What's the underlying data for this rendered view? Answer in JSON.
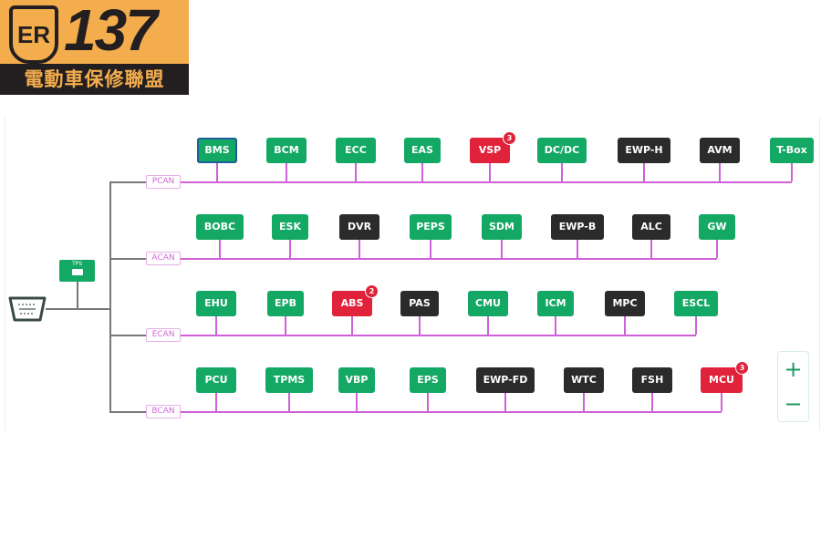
{
  "logo": {
    "badge": "ER",
    "number": "137",
    "tagline": "電動車保修聯盟"
  },
  "colors": {
    "ok": "#14a865",
    "inactive": "#2b2b2b",
    "fault": "#e0223a",
    "selected_border": "#1d5f9a",
    "bus": "#d060d8",
    "trunk": "#777777"
  },
  "gateway": {
    "label": "TPS"
  },
  "buses": [
    {
      "name": "PCAN",
      "nodes": [
        {
          "label": "BMS",
          "status": "ok",
          "selected": true
        },
        {
          "label": "BCM",
          "status": "ok"
        },
        {
          "label": "ECC",
          "status": "ok"
        },
        {
          "label": "EAS",
          "status": "ok"
        },
        {
          "label": "VSP",
          "status": "fault",
          "faults": "3"
        },
        {
          "label": "DC/DC",
          "status": "ok"
        },
        {
          "label": "EWP-H",
          "status": "inactive"
        },
        {
          "label": "AVM",
          "status": "inactive"
        },
        {
          "label": "T-Box",
          "status": "ok"
        }
      ]
    },
    {
      "name": "ACAN",
      "nodes": [
        {
          "label": "BOBC",
          "status": "ok"
        },
        {
          "label": "ESK",
          "status": "ok"
        },
        {
          "label": "DVR",
          "status": "inactive"
        },
        {
          "label": "PEPS",
          "status": "ok"
        },
        {
          "label": "SDM",
          "status": "ok"
        },
        {
          "label": "EWP-B",
          "status": "inactive"
        },
        {
          "label": "ALC",
          "status": "inactive"
        },
        {
          "label": "GW",
          "status": "ok"
        }
      ]
    },
    {
      "name": "ECAN",
      "nodes": [
        {
          "label": "EHU",
          "status": "ok"
        },
        {
          "label": "EPB",
          "status": "ok"
        },
        {
          "label": "ABS",
          "status": "fault",
          "faults": "2"
        },
        {
          "label": "PAS",
          "status": "inactive"
        },
        {
          "label": "CMU",
          "status": "ok"
        },
        {
          "label": "ICM",
          "status": "ok"
        },
        {
          "label": "MPC",
          "status": "inactive"
        },
        {
          "label": "ESCL",
          "status": "ok"
        }
      ]
    },
    {
      "name": "BCAN",
      "nodes": [
        {
          "label": "PCU",
          "status": "ok"
        },
        {
          "label": "TPMS",
          "status": "ok"
        },
        {
          "label": "VBP",
          "status": "ok"
        },
        {
          "label": "EPS",
          "status": "ok"
        },
        {
          "label": "EWP-FD",
          "status": "inactive"
        },
        {
          "label": "WTC",
          "status": "inactive"
        },
        {
          "label": "FSH",
          "status": "inactive"
        },
        {
          "label": "MCU",
          "status": "fault",
          "faults": "3"
        }
      ]
    }
  ],
  "zoom": {
    "in": "+",
    "out": "−"
  }
}
